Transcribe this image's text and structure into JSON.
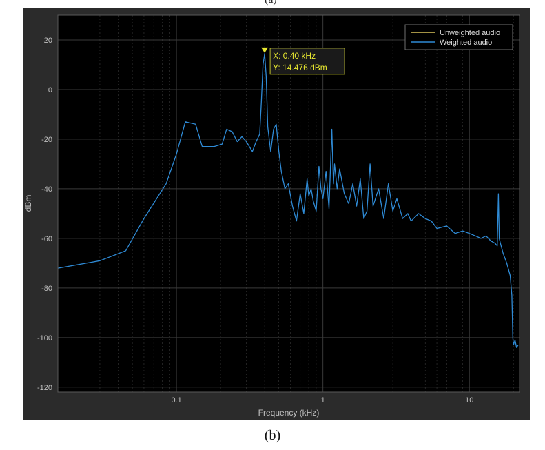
{
  "caption": "(b)",
  "top_clipped_caption": "(a)",
  "colors": {
    "figure_background": "#2b2b2b",
    "axes_background": "#000000",
    "grid": "#3a3a3a",
    "axis_text": "#c0c0c0",
    "unweighted_series": "#d9c25a",
    "weighted_series": "#2f8bd6",
    "datatip": "#e8e830"
  },
  "chart_data": {
    "type": "line",
    "title": "",
    "xlabel": "Frequency (kHz)",
    "ylabel": "dBm",
    "xscale": "log",
    "xlim": [
      0.0155,
      22
    ],
    "ylim": [
      -122,
      30
    ],
    "xticks": [
      0.1,
      1,
      10
    ],
    "xtick_labels": [
      "0.1",
      "1",
      "10"
    ],
    "yticks": [
      20,
      0,
      -20,
      -40,
      -60,
      -80,
      -100,
      -120
    ],
    "ytick_labels": [
      "20",
      "0",
      "-20",
      "-40",
      "-60",
      "-80",
      "-100",
      "-120"
    ],
    "grid": true,
    "legend": {
      "position": "top-right",
      "entries": [
        "Unweighted audio",
        "Weighted audio"
      ]
    },
    "series": [
      {
        "name": "Unweighted audio",
        "color": "#d9c25a",
        "x": [],
        "y": []
      },
      {
        "name": "Weighted audio",
        "color": "#2f8bd6",
        "x": [
          0.0155,
          0.03,
          0.045,
          0.06,
          0.085,
          0.1,
          0.115,
          0.135,
          0.15,
          0.18,
          0.205,
          0.22,
          0.24,
          0.26,
          0.28,
          0.3,
          0.33,
          0.35,
          0.37,
          0.38,
          0.39,
          0.4,
          0.41,
          0.42,
          0.44,
          0.46,
          0.48,
          0.5,
          0.52,
          0.55,
          0.58,
          0.62,
          0.66,
          0.7,
          0.74,
          0.78,
          0.8,
          0.83,
          0.86,
          0.9,
          0.94,
          0.97,
          1.0,
          1.05,
          1.1,
          1.15,
          1.18,
          1.2,
          1.25,
          1.3,
          1.4,
          1.5,
          1.6,
          1.7,
          1.8,
          1.9,
          2.0,
          2.1,
          2.2,
          2.4,
          2.6,
          2.8,
          3.0,
          3.2,
          3.5,
          3.8,
          4.0,
          4.5,
          5.0,
          5.5,
          6.0,
          7.0,
          8.0,
          9.0,
          10.0,
          11.0,
          12.0,
          13.0,
          14.0,
          15.0,
          15.5,
          15.8,
          16.0,
          16.3,
          17.0,
          18.0,
          19.0,
          19.5,
          19.8,
          20.0,
          20.5,
          21.0,
          21.5
        ],
        "y": [
          -72,
          -69,
          -65,
          -52,
          -38,
          -26,
          -13,
          -14,
          -23,
          -23,
          -22,
          -16,
          -17,
          -21,
          -19,
          -21,
          -25,
          -21,
          -18,
          -5,
          10,
          14.5,
          5,
          -15,
          -25,
          -16,
          -14,
          -25,
          -33,
          -40,
          -38,
          -47,
          -53,
          -42,
          -50,
          -36,
          -43,
          -40,
          -45,
          -49,
          -31,
          -40,
          -44,
          -33,
          -48,
          -16,
          -38,
          -30,
          -40,
          -32,
          -42,
          -46,
          -38,
          -47,
          -36,
          -52,
          -49,
          -30,
          -47,
          -40,
          -52,
          -38,
          -49,
          -44,
          -52,
          -50,
          -53,
          -50,
          -52,
          -53,
          -56,
          -55,
          -58,
          -57,
          -58,
          -59,
          -60,
          -59,
          -61,
          -62,
          -63,
          -42,
          -60,
          -62,
          -66,
          -70,
          -75,
          -83,
          -100,
          -103,
          -101,
          -104,
          -103
        ]
      }
    ],
    "annotations": [
      {
        "type": "datatip",
        "x": 0.4,
        "y": 14.476,
        "lines": [
          "X: 0.40 kHz",
          "Y:  14.476 dBm"
        ]
      }
    ]
  }
}
